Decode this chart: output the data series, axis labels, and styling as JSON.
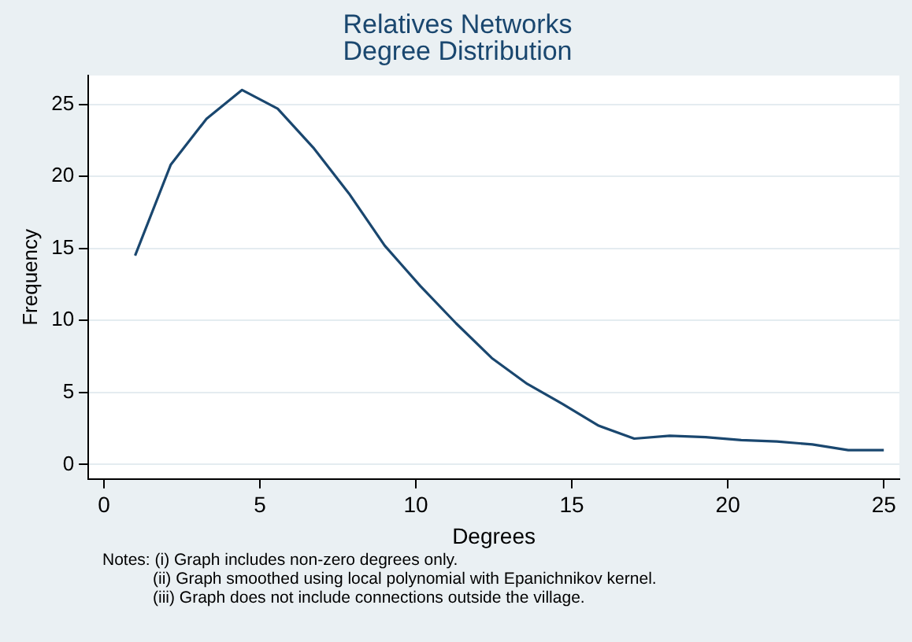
{
  "chart_data": {
    "type": "line",
    "title": "Relatives Networks",
    "subtitle": "Degree Distribution",
    "xlabel": "Degrees",
    "ylabel": "Frequency",
    "x": [
      1,
      2.14,
      3.29,
      4.43,
      5.57,
      6.71,
      7.86,
      9,
      10.14,
      11.29,
      12.43,
      13.57,
      14.71,
      15.86,
      17,
      18.14,
      19.29,
      20.43,
      21.57,
      22.71,
      23.86,
      25
    ],
    "series": [
      {
        "color": "#1a476f",
        "values": [
          14.5,
          20.8,
          24,
          26,
          24.7,
          22,
          18.8,
          15.2,
          12.4,
          9.8,
          7.4,
          5.6,
          4.2,
          2.7,
          1.8,
          2.0,
          1.9,
          1.7,
          1.6,
          1.4,
          1.0,
          1.0
        ]
      }
    ],
    "xlim": [
      -0.5,
      25.5
    ],
    "ylim": [
      -1,
      27
    ],
    "xticks": [
      0,
      5,
      10,
      15,
      20,
      25
    ],
    "yticks": [
      0,
      5,
      10,
      15,
      20,
      25
    ],
    "grid": "y",
    "legend": false,
    "marker": "none",
    "line_style": "solid",
    "annotations": [
      "Notes: (i) Graph includes non-zero degrees only.",
      "(ii) Graph smoothed using local polynomial with Epanichnikov kernel.",
      "(iii) Graph does not include connections outside the village."
    ]
  }
}
